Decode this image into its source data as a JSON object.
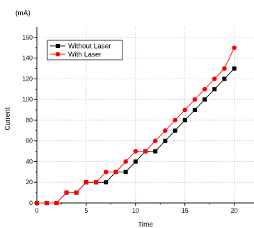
{
  "chart_data": {
    "type": "line",
    "title": "",
    "xlabel": "Time",
    "ylabel": "Current",
    "y_unit": "(mA)",
    "xlim": [
      0,
      22
    ],
    "ylim": [
      0,
      170
    ],
    "x_ticks": [
      0,
      5,
      10,
      15,
      20
    ],
    "y_ticks": [
      0,
      20,
      40,
      60,
      80,
      100,
      120,
      140,
      160
    ],
    "grid": true,
    "legend_position": "top-left",
    "series": [
      {
        "name": "Without Laser",
        "color": "#000000",
        "marker": "square",
        "x": [
          0,
          1,
          2,
          3,
          4,
          5,
          6,
          7,
          8,
          9,
          10,
          11,
          12,
          13,
          14,
          15,
          16,
          17,
          18,
          19,
          20
        ],
        "values": [
          0,
          0,
          0,
          10,
          10,
          20,
          20,
          20,
          30,
          30,
          40,
          50,
          50,
          60,
          70,
          80,
          90,
          100,
          110,
          120,
          130
        ]
      },
      {
        "name": "With Laser",
        "color": "#ff0000",
        "marker": "circle",
        "x": [
          0,
          1,
          2,
          3,
          4,
          5,
          6,
          7,
          8,
          9,
          10,
          11,
          12,
          13,
          14,
          15,
          16,
          17,
          18,
          19,
          20
        ],
        "values": [
          0,
          0,
          0,
          10,
          10,
          20,
          20,
          30,
          30,
          40,
          50,
          50,
          60,
          70,
          80,
          90,
          100,
          110,
          120,
          130,
          150
        ]
      }
    ]
  }
}
